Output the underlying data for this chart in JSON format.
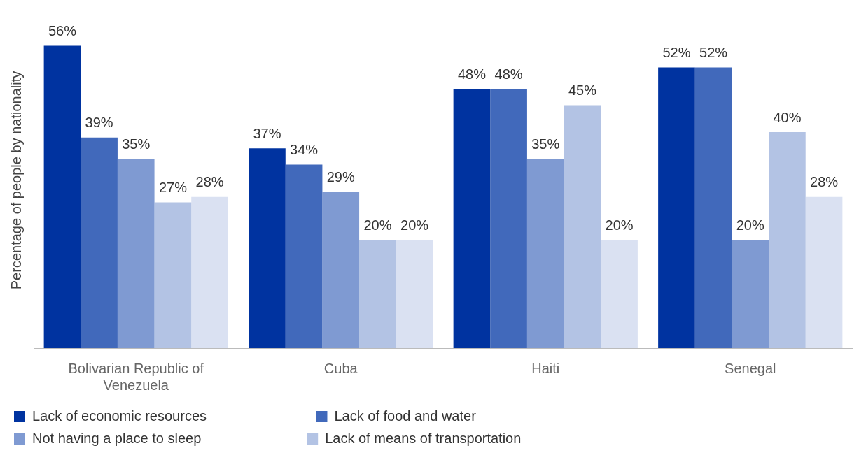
{
  "chart_data": {
    "type": "bar",
    "ylabel": "Percentage of people by nationality",
    "categories": [
      "Bolivarian Republic of Venezuela",
      "Cuba",
      "Haiti",
      "Senegal"
    ],
    "series": [
      {
        "name": "Lack of economic resources",
        "color": "#0033a0",
        "values": [
          56,
          37,
          48,
          52
        ],
        "value_labels": [
          "56%",
          "37%",
          "48%",
          "52%"
        ]
      },
      {
        "name": "Lack of food and water",
        "color": "#4169bb",
        "values": [
          39,
          34,
          48,
          52
        ],
        "value_labels": [
          "39%",
          "34%",
          "48%",
          "52%"
        ]
      },
      {
        "name": "Not having a place to sleep",
        "color": "#7f9ad2",
        "values": [
          35,
          29,
          35,
          20
        ],
        "value_labels": [
          "35%",
          "29%",
          "35%",
          "20%"
        ]
      },
      {
        "name": "Lack of means of transportation",
        "color": "#b3c3e4",
        "values": [
          27,
          20,
          45,
          40
        ],
        "value_labels": [
          "27%",
          "20%",
          "45%",
          "40%"
        ]
      },
      {
        "color": "#dae1f2",
        "values": [
          28,
          20,
          20,
          28
        ],
        "value_labels": [
          "28%",
          "20%",
          "20%",
          "28%"
        ]
      }
    ],
    "grid": false,
    "legend": "bottom"
  }
}
